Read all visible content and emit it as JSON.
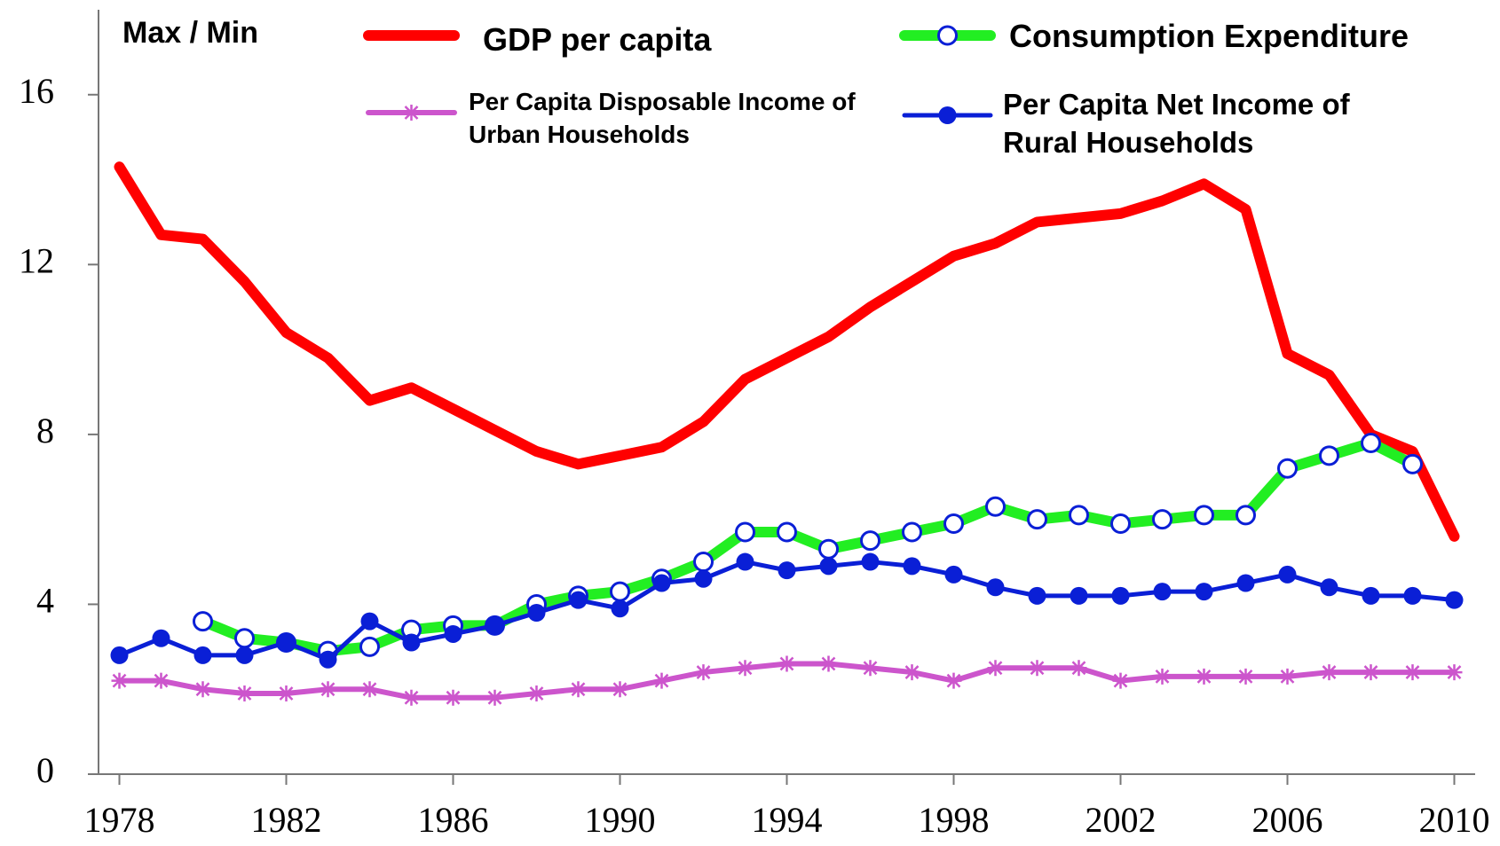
{
  "chart_data": {
    "type": "line",
    "y_label": "Max / Min",
    "x": [
      1978,
      1979,
      1980,
      1981,
      1982,
      1983,
      1984,
      1985,
      1986,
      1987,
      1988,
      1989,
      1990,
      1991,
      1992,
      1993,
      1994,
      1995,
      1996,
      1997,
      1998,
      1999,
      2000,
      2001,
      2002,
      2003,
      2004,
      2005,
      2006,
      2007,
      2008,
      2009,
      2010
    ],
    "series": [
      {
        "name": "GDP per capita",
        "color": "#ff0000",
        "marker": "none",
        "width": 12,
        "values": [
          14.3,
          12.7,
          12.6,
          11.6,
          10.4,
          9.8,
          8.8,
          9.1,
          8.6,
          8.1,
          7.6,
          7.3,
          7.5,
          7.7,
          8.3,
          9.3,
          9.8,
          10.3,
          11.0,
          11.6,
          12.2,
          12.5,
          13.0,
          13.1,
          13.2,
          13.5,
          13.9,
          13.3,
          9.9,
          9.4,
          8.0,
          7.6,
          5.6
        ]
      },
      {
        "name": "Consumption Expenditure",
        "color": "#22ee22",
        "marker": "open-circle",
        "width": 12,
        "values": [
          null,
          null,
          3.6,
          3.2,
          3.1,
          2.9,
          3.0,
          3.4,
          3.5,
          3.5,
          4.0,
          4.2,
          4.3,
          4.6,
          5.0,
          5.7,
          5.7,
          5.3,
          5.5,
          5.7,
          5.9,
          6.3,
          6.0,
          6.1,
          5.9,
          6.0,
          6.1,
          6.1,
          7.2,
          7.5,
          7.8,
          7.3,
          null
        ]
      },
      {
        "name": "Per Capita Disposable Income of Urban Households",
        "color": "#cc55cc",
        "marker": "asterisk",
        "width": 6,
        "values": [
          2.2,
          2.2,
          2.0,
          1.9,
          1.9,
          2.0,
          2.0,
          1.8,
          1.8,
          1.8,
          1.9,
          2.0,
          2.0,
          2.2,
          2.4,
          2.5,
          2.6,
          2.6,
          2.5,
          2.4,
          2.2,
          2.5,
          2.5,
          2.5,
          2.2,
          2.3,
          2.3,
          2.3,
          2.3,
          2.4,
          2.4,
          2.4,
          2.4
        ]
      },
      {
        "name": "Per Capita Net Income of Rural Households",
        "color": "#0a1fd6",
        "marker": "filled-circle",
        "width": 5,
        "values": [
          2.8,
          3.2,
          2.8,
          2.8,
          3.1,
          2.7,
          3.6,
          3.1,
          3.3,
          3.5,
          3.8,
          4.1,
          3.9,
          4.5,
          4.6,
          5.0,
          4.8,
          4.9,
          5.0,
          4.9,
          4.7,
          4.4,
          4.2,
          4.2,
          4.2,
          4.3,
          4.3,
          4.5,
          4.7,
          4.4,
          4.2,
          4.2,
          4.1
        ]
      }
    ],
    "xlim": [
      1977.5,
      2010.5
    ],
    "xticks": [
      1978,
      1982,
      1986,
      1990,
      1994,
      1998,
      2002,
      2006,
      2010
    ],
    "ylim": [
      0,
      18
    ],
    "yticks": [
      0,
      4,
      8,
      12,
      16
    ],
    "grid": false,
    "legend": "top"
  }
}
